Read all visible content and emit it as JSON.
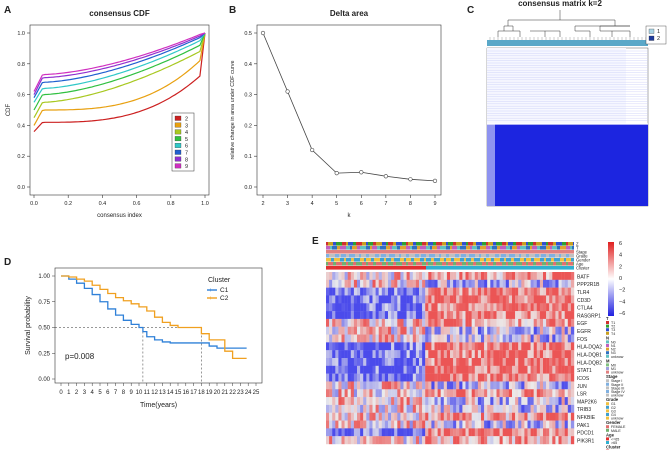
{
  "panels": {
    "a": {
      "letter": "A"
    },
    "b": {
      "letter": "B"
    },
    "c": {
      "letter": "C"
    },
    "d": {
      "letter": "D"
    },
    "e": {
      "letter": "E"
    }
  },
  "chart_data": [
    {
      "id": "cdf",
      "type": "line",
      "title": "consensus CDF",
      "xlabel": "consensus index",
      "ylabel": "CDF",
      "xlim": [
        0,
        1
      ],
      "ylim": [
        0,
        1
      ],
      "xticks": [
        "0.0",
        "0.2",
        "0.4",
        "0.6",
        "0.8",
        "1.0"
      ],
      "yticks": [
        "0.0",
        "0.2",
        "0.4",
        "0.6",
        "0.8",
        "1.0"
      ],
      "legend": "right",
      "series": [
        {
          "name": "2",
          "color": "#cc2020",
          "start": 0.36,
          "plateau": 0.5,
          "end": 0.72
        },
        {
          "name": "3",
          "color": "#e8a010",
          "start": 0.4,
          "plateau": 0.58,
          "end": 0.82
        },
        {
          "name": "4",
          "color": "#a8c820",
          "start": 0.45,
          "plateau": 0.63,
          "end": 0.88
        },
        {
          "name": "5",
          "color": "#30c040",
          "start": 0.5,
          "plateau": 0.68,
          "end": 0.92
        },
        {
          "name": "6",
          "color": "#30c8c8",
          "start": 0.55,
          "plateau": 0.72,
          "end": 0.95
        },
        {
          "name": "7",
          "color": "#2060d0",
          "start": 0.58,
          "plateau": 0.76,
          "end": 0.97
        },
        {
          "name": "8",
          "color": "#9030d0",
          "start": 0.6,
          "plateau": 0.79,
          "end": 0.98
        },
        {
          "name": "9",
          "color": "#d030c0",
          "start": 0.62,
          "plateau": 0.81,
          "end": 0.99
        }
      ]
    },
    {
      "id": "delta",
      "type": "line",
      "title": "Delta area",
      "xlabel": "k",
      "ylabel": "relative change in area under CDF curve",
      "x": [
        2,
        3,
        4,
        5,
        6,
        7,
        8,
        9
      ],
      "y": [
        0.5,
        0.31,
        0.12,
        0.045,
        0.048,
        0.035,
        0.025,
        0.02
      ],
      "xlim": [
        2,
        9
      ],
      "ylim": [
        0,
        0.5
      ],
      "xticks": [
        "2",
        "3",
        "4",
        "5",
        "6",
        "7",
        "8",
        "9"
      ],
      "yticks": [
        "0.0",
        "0.1",
        "0.2",
        "0.3",
        "0.4",
        "0.5"
      ]
    },
    {
      "id": "consensus",
      "type": "heatmap",
      "title": "consensus matrix k=2",
      "cluster_fraction": 0.36,
      "legend": [
        "1",
        "2"
      ],
      "legend_colors": [
        "#a9d4e6",
        "#1d3a9c"
      ],
      "matrix_color": "#1c25e0"
    },
    {
      "id": "survival",
      "type": "line",
      "title": "",
      "xlabel": "Time(years)",
      "ylabel": "Survival probability",
      "xlim": [
        0,
        25
      ],
      "ylim": [
        0,
        1
      ],
      "xticks": [
        "0",
        "1",
        "2",
        "3",
        "4",
        "5",
        "6",
        "7",
        "8",
        "9",
        "10",
        "11",
        "12",
        "13",
        "14",
        "15",
        "16",
        "17",
        "18",
        "19",
        "20",
        "21",
        "22",
        "23",
        "24",
        "25"
      ],
      "yticks": [
        "0.00",
        "0.25",
        "0.50",
        "0.75",
        "1.00"
      ],
      "legend_title": "Cluster",
      "pvalue": "p=0.008",
      "median_times": [
        10.5,
        18
      ],
      "series": [
        {
          "name": "C1",
          "color": "#2f80d8",
          "x": [
            0,
            1,
            2,
            3,
            4,
            5,
            6,
            7,
            8,
            9,
            10,
            10.5,
            11,
            12,
            13,
            14,
            15,
            16,
            17,
            18,
            19,
            20,
            21,
            22,
            23
          ],
          "y": [
            1.0,
            0.97,
            0.93,
            0.88,
            0.82,
            0.75,
            0.68,
            0.62,
            0.57,
            0.53,
            0.5,
            0.46,
            0.41,
            0.38,
            0.36,
            0.35,
            0.35,
            0.35,
            0.35,
            0.35,
            0.32,
            0.3,
            0.3,
            0.3,
            0.3
          ]
        },
        {
          "name": "C2",
          "color": "#f0a020",
          "x": [
            0,
            1,
            2,
            3,
            4,
            5,
            6,
            7,
            8,
            9,
            10,
            11,
            12,
            13,
            14,
            15,
            16,
            17,
            18,
            19,
            20,
            21,
            22,
            23
          ],
          "y": [
            1.0,
            0.99,
            0.97,
            0.95,
            0.91,
            0.87,
            0.83,
            0.79,
            0.76,
            0.73,
            0.7,
            0.66,
            0.6,
            0.55,
            0.52,
            0.5,
            0.5,
            0.5,
            0.44,
            0.38,
            0.38,
            0.27,
            0.2,
            0.2
          ]
        }
      ]
    },
    {
      "id": "genes",
      "type": "heatmap",
      "annotation_rows": [
        "Z",
        "T",
        "Stage",
        "Grade",
        "Gender",
        "Age",
        "Cluster"
      ],
      "genes": [
        "BATF",
        "PPP2R1B",
        "TLR4",
        "CD3D",
        "CTLA4",
        "RASGRP1",
        "EGF",
        "EGFR",
        "FOS",
        "HLA-DQA2",
        "HLA-DQB1",
        "HLA-DQB2",
        "STAT1",
        "ICOS",
        "JUN",
        "LSR",
        "MAP2K6",
        "TRIB3",
        "NFKBIE",
        "PAK1",
        "PDCD1",
        "PIK3R1"
      ],
      "scale_ticks": [
        "6",
        "4",
        "2",
        "0",
        "−2",
        "−4",
        "−6"
      ],
      "split_fraction": 0.39,
      "legend_groups": [
        {
          "title": "T",
          "items": [
            "T1",
            "T2",
            "T3",
            "T4"
          ]
        },
        {
          "title": "N",
          "items": [
            "N0",
            "N1",
            "N2",
            "N3",
            "unknow"
          ]
        },
        {
          "title": "M",
          "items": [
            "M0",
            "M1",
            "unknow"
          ]
        },
        {
          "title": "Stage",
          "items": [
            "Stage I",
            "Stage II",
            "Stage III",
            "Stage IV",
            "unknow"
          ]
        },
        {
          "title": "Grade",
          "items": [
            "G1",
            "G2",
            "G3",
            "G4",
            "unknow"
          ]
        },
        {
          "title": "Gender",
          "items": [
            "FEMALE",
            "MALE"
          ]
        },
        {
          "title": "Age",
          "items": [
            "<=65",
            ">65"
          ]
        },
        {
          "title": "Cluster",
          "items": [
            "C1",
            "C2"
          ]
        }
      ]
    }
  ]
}
